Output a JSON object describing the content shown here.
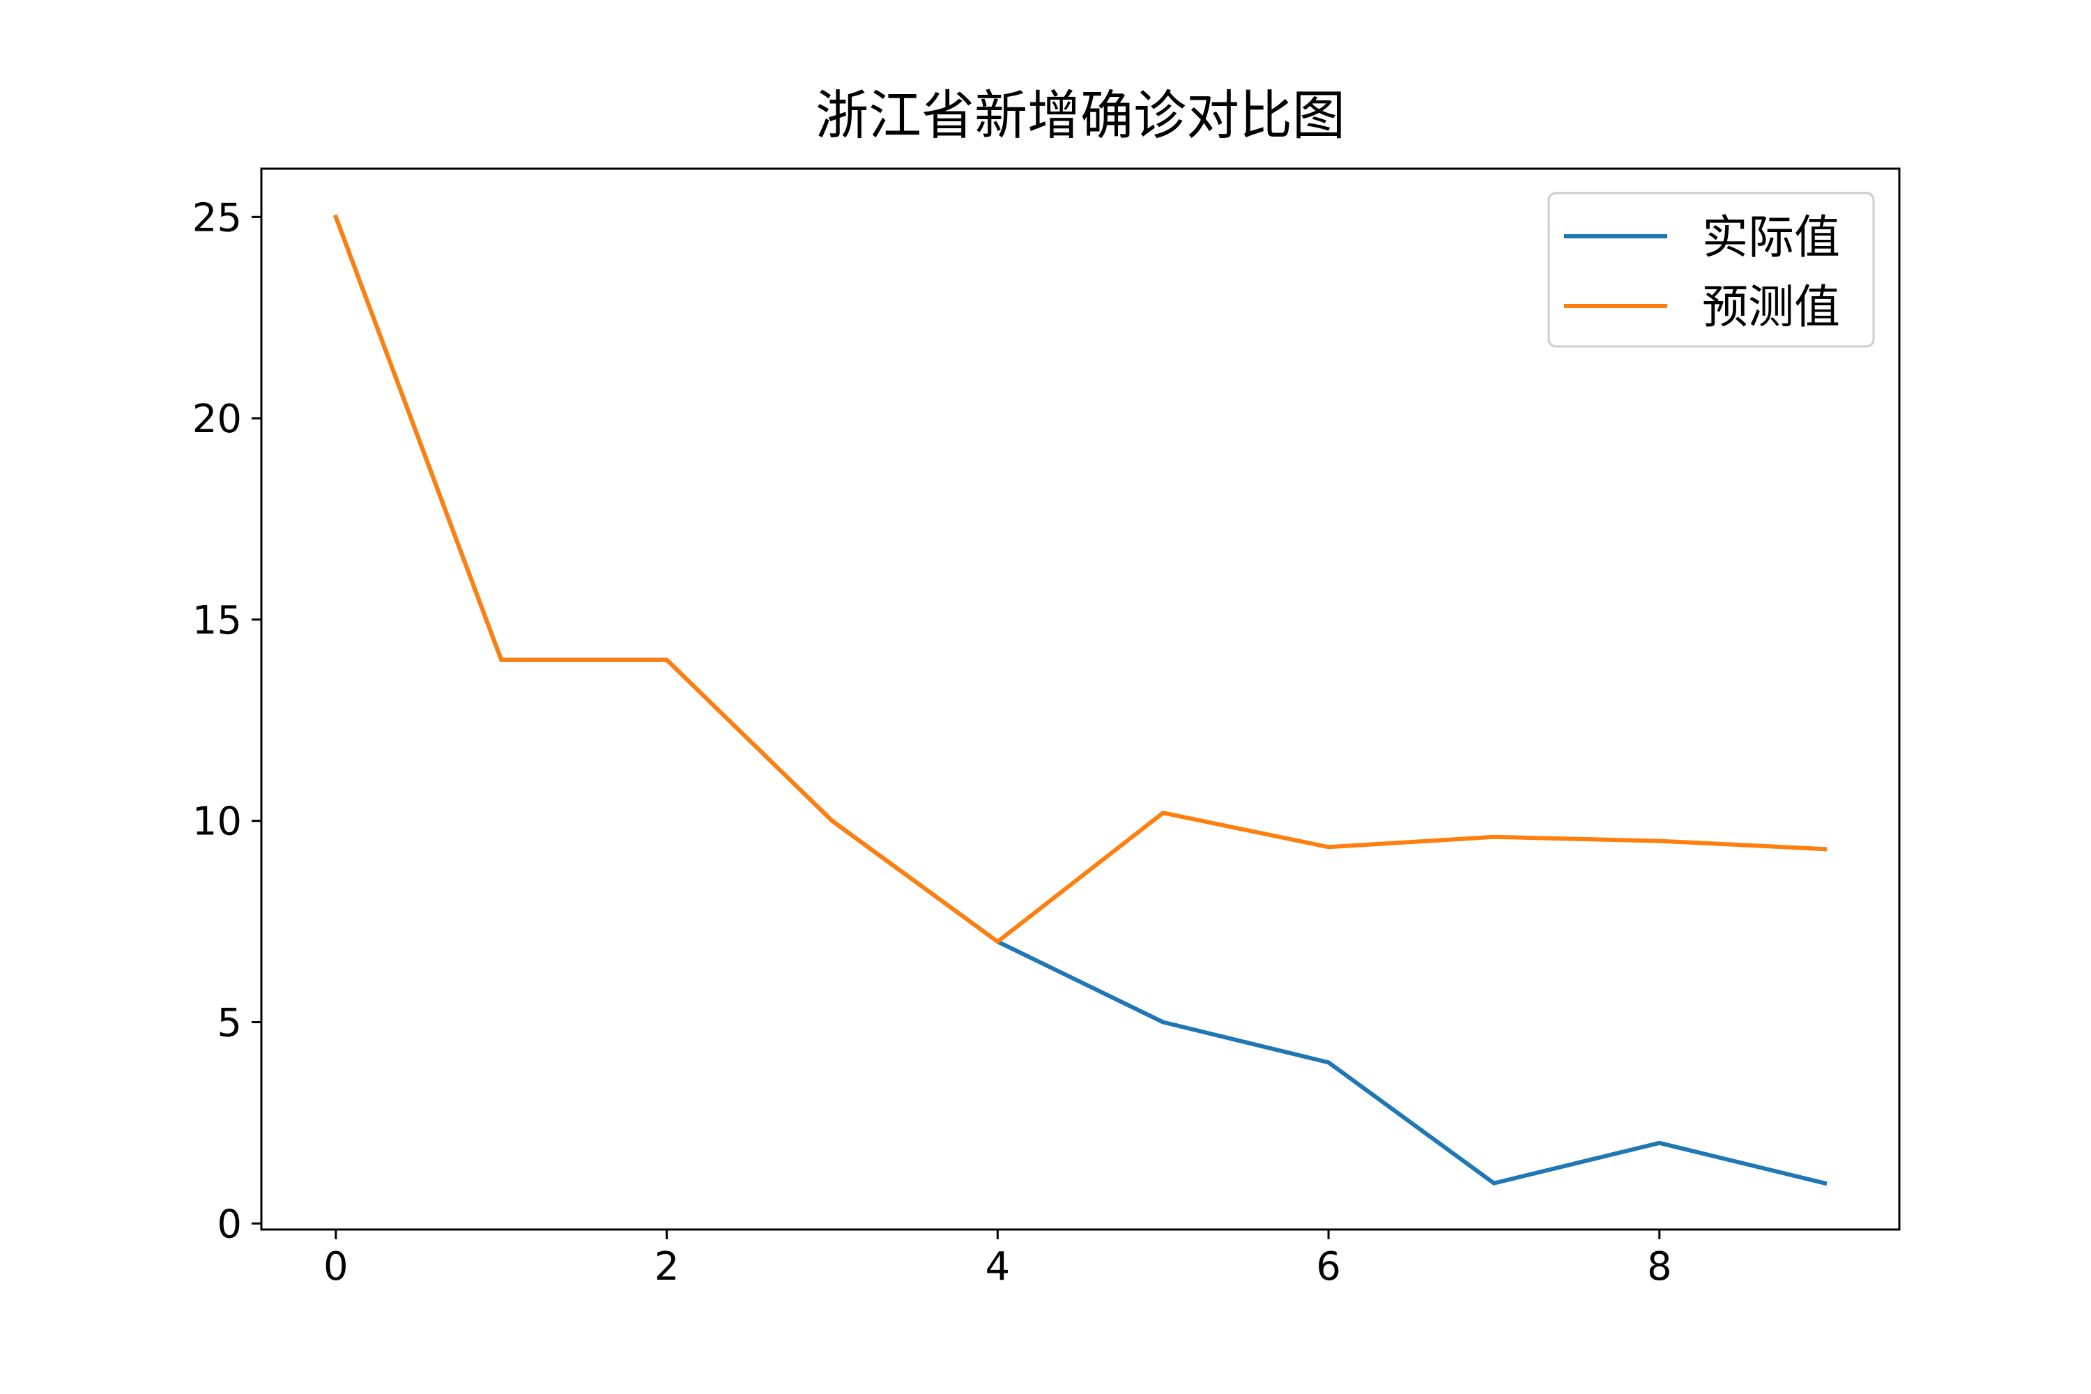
{
  "chart_data": {
    "type": "line",
    "title": "浙江省新增确诊对比图",
    "xlabel": "",
    "ylabel": "",
    "x": [
      0,
      1,
      2,
      3,
      4,
      5,
      6,
      7,
      8,
      9
    ],
    "xlim": [
      -0.45,
      9.45
    ],
    "ylim": [
      -0.15,
      26.2
    ],
    "xticks": [
      0,
      2,
      4,
      6,
      8
    ],
    "yticks": [
      0,
      5,
      10,
      15,
      20,
      25
    ],
    "grid": false,
    "legend_position": "top-right",
    "series": [
      {
        "name": "实际值",
        "color": "#1f77b4",
        "values": [
          25,
          14,
          14,
          10,
          7,
          5,
          4,
          1,
          2,
          1
        ]
      },
      {
        "name": "预测值",
        "color": "#ff7f0e",
        "values": [
          25,
          14,
          14,
          10,
          7,
          10.2,
          9.35,
          9.6,
          9.5,
          9.3
        ]
      }
    ]
  }
}
